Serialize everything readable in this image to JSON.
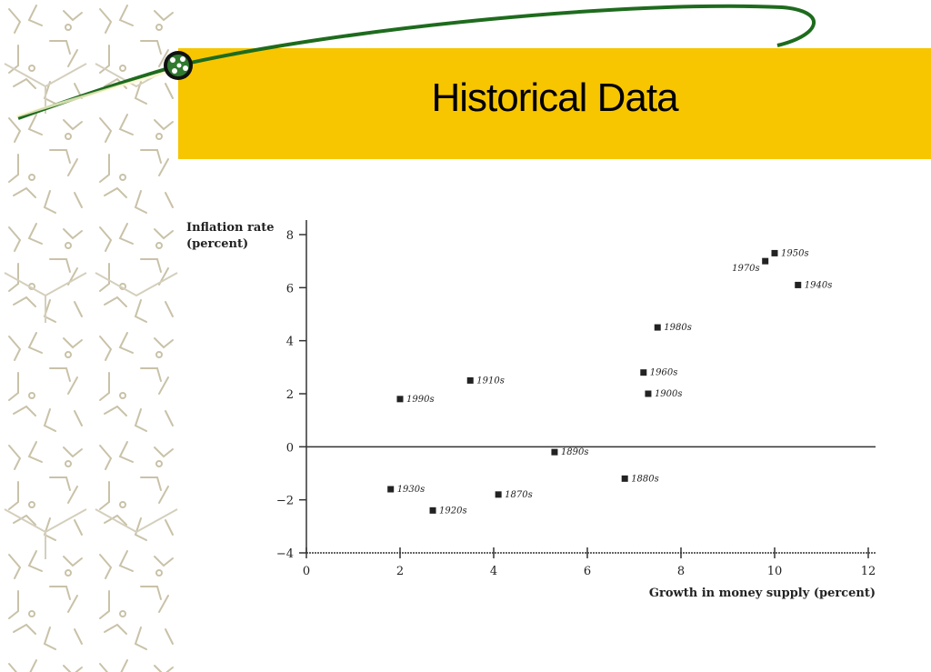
{
  "slide": {
    "title": "Historical Data",
    "accent_color": "#F7C600",
    "swoosh_color": "#1E6B1E"
  },
  "chart_data": {
    "type": "scatter",
    "title": "",
    "ylabel_line1": "Inflation rate",
    "ylabel_line2": "(percent)",
    "xlabel": "Growth in money supply (percent)",
    "xlim": [
      0,
      12
    ],
    "ylim": [
      -4,
      8
    ],
    "x_ticks": [
      "0",
      "2",
      "4",
      "6",
      "8",
      "10",
      "12"
    ],
    "y_ticks": [
      "8",
      "6",
      "4",
      "2",
      "0",
      "−2",
      "−4"
    ],
    "grid": false,
    "points": [
      {
        "label": "1950s",
        "x": 10.0,
        "y": 7.3
      },
      {
        "label": "1970s",
        "x": 9.8,
        "y": 7.0
      },
      {
        "label": "1940s",
        "x": 10.5,
        "y": 6.1
      },
      {
        "label": "1980s",
        "x": 7.5,
        "y": 4.5
      },
      {
        "label": "1910s",
        "x": 3.5,
        "y": 2.5
      },
      {
        "label": "1960s",
        "x": 7.2,
        "y": 2.8
      },
      {
        "label": "1900s",
        "x": 7.3,
        "y": 2.0
      },
      {
        "label": "1990s",
        "x": 2.0,
        "y": 1.8
      },
      {
        "label": "1890s",
        "x": 5.3,
        "y": -0.2
      },
      {
        "label": "1880s",
        "x": 6.8,
        "y": -1.2
      },
      {
        "label": "1930s",
        "x": 1.8,
        "y": -1.6
      },
      {
        "label": "1870s",
        "x": 4.1,
        "y": -1.8
      },
      {
        "label": "1920s",
        "x": 2.7,
        "y": -2.4
      }
    ]
  }
}
